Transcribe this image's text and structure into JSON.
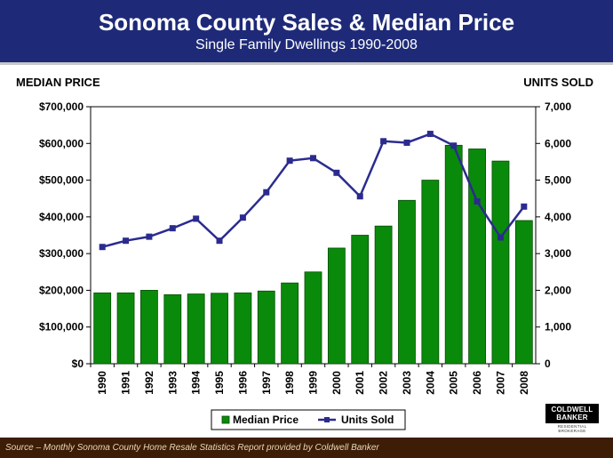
{
  "header": {
    "title": "Sonoma County Sales & Median Price",
    "subtitle": "Single Family Dwellings 1990-2008"
  },
  "footer": {
    "source": "Source – Monthly Sonoma County Home Resale Statistics Report provided by Coldwell Banker"
  },
  "logo": {
    "line1": "COLDWELL",
    "line2": "BANKER",
    "tagline": "RESIDENTIAL BROKERAGE"
  },
  "colors": {
    "bar": "#0a8a0a",
    "bar_stroke": "#064d06",
    "line": "#2b2b8f",
    "header_bg": "#1e2a78",
    "footer_bg": "#3d1d06"
  },
  "chart_data": {
    "type": "bar",
    "categories": [
      "1990",
      "1991",
      "1992",
      "1993",
      "1994",
      "1995",
      "1996",
      "1997",
      "1998",
      "1999",
      "2000",
      "2001",
      "2002",
      "2003",
      "2004",
      "2005",
      "2006",
      "2007",
      "2008"
    ],
    "series": [
      {
        "name": "Median Price",
        "type": "bar",
        "axis": "left",
        "values": [
          193000,
          193000,
          200000,
          188000,
          190000,
          192000,
          193000,
          198000,
          220000,
          250000,
          315000,
          350000,
          375000,
          445000,
          500000,
          595000,
          585000,
          552000,
          390000
        ]
      },
      {
        "name": "Units Sold",
        "type": "line",
        "axis": "right",
        "values": [
          3180,
          3350,
          3460,
          3690,
          3950,
          3350,
          3980,
          4670,
          5530,
          5600,
          5200,
          4560,
          6060,
          6020,
          6260,
          5940,
          4420,
          3440,
          4280
        ]
      }
    ],
    "left_axis": {
      "label": "MEDIAN PRICE",
      "ylim": [
        0,
        700000
      ],
      "ticks": [
        "$0",
        "$100,000",
        "$200,000",
        "$300,000",
        "$400,000",
        "$500,000",
        "$600,000",
        "$700,000"
      ]
    },
    "right_axis": {
      "label": "UNITS SOLD",
      "ylim": [
        0,
        7000
      ],
      "ticks": [
        "0",
        "1,000",
        "2,000",
        "3,000",
        "4,000",
        "5,000",
        "6,000",
        "7,000"
      ]
    },
    "legend_position": "bottom-center",
    "grid": false
  }
}
